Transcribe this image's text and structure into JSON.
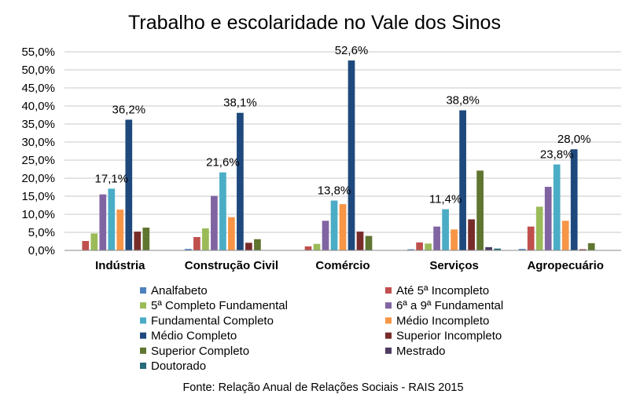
{
  "chart_data": {
    "type": "bar",
    "title": "Trabalho e escolaridade no Vale dos Sinos",
    "source": "Fonte: Relação Anual de Relações Sociais - RAIS 2015",
    "categories": [
      "Indústria",
      "Construção Civil",
      "Comércio",
      "Serviços",
      "Agropecuário"
    ],
    "ylim": [
      0,
      55
    ],
    "yticks": [
      0,
      5,
      10,
      15,
      20,
      25,
      30,
      35,
      40,
      45,
      50,
      55
    ],
    "ytick_labels": [
      "0,0%",
      "5,0%",
      "10,0%",
      "15,0%",
      "20,0%",
      "25,0%",
      "30,0%",
      "35,0%",
      "40,0%",
      "45,0%",
      "50,0%",
      "55,0%"
    ],
    "grid": true,
    "legend_position": "bottom",
    "series": [
      {
        "name": "Analfabeto",
        "color": "#4f81bd",
        "values": [
          0.1,
          0.4,
          0.1,
          0.3,
          0.4
        ]
      },
      {
        "name": "Até 5ª Incompleto",
        "color": "#c0504d",
        "values": [
          2.6,
          3.7,
          1.1,
          2.2,
          6.6
        ]
      },
      {
        "name": "5ª Completo Fundamental",
        "color": "#9bbb59",
        "values": [
          4.7,
          6.1,
          1.8,
          1.9,
          12.1
        ]
      },
      {
        "name": "6ª a 9ª Fundamental",
        "color": "#8064a2",
        "values": [
          15.5,
          15.1,
          8.2,
          6.6,
          17.6
        ]
      },
      {
        "name": "Fundamental Completo",
        "color": "#4bacc6",
        "values": [
          17.1,
          21.6,
          13.8,
          11.4,
          23.8
        ]
      },
      {
        "name": "Médio Incompleto",
        "color": "#f79646",
        "values": [
          11.3,
          9.2,
          12.8,
          5.8,
          8.2
        ]
      },
      {
        "name": "Médio Completo",
        "color": "#1f497d",
        "values": [
          36.2,
          38.1,
          52.6,
          38.8,
          28.0
        ]
      },
      {
        "name": "Superior Incompleto",
        "color": "#772c2a",
        "values": [
          5.2,
          2.1,
          5.2,
          8.6,
          0.3
        ]
      },
      {
        "name": "Superior Completo",
        "color": "#5f7530",
        "values": [
          6.3,
          3.1,
          4.0,
          22.1,
          2.0
        ]
      },
      {
        "name": "Mestrado",
        "color": "#4d3b62",
        "values": [
          0.1,
          0.1,
          0.1,
          0.9,
          0.1
        ]
      },
      {
        "name": "Doutorado",
        "color": "#276a7c",
        "values": [
          0.0,
          0.0,
          0.0,
          0.5,
          0.0
        ]
      }
    ],
    "data_labels": [
      {
        "series": "Fundamental Completo",
        "category": "Indústria",
        "text": "17,1%"
      },
      {
        "series": "Médio Completo",
        "category": "Indústria",
        "text": "36,2%"
      },
      {
        "series": "Fundamental Completo",
        "category": "Construção Civil",
        "text": "21,6%"
      },
      {
        "series": "Médio Completo",
        "category": "Construção Civil",
        "text": "38,1%"
      },
      {
        "series": "Fundamental Completo",
        "category": "Comércio",
        "text": "13,8%"
      },
      {
        "series": "Médio Completo",
        "category": "Comércio",
        "text": "52,6%"
      },
      {
        "series": "Fundamental Completo",
        "category": "Serviços",
        "text": "11,4%"
      },
      {
        "series": "Médio Completo",
        "category": "Serviços",
        "text": "38,8%"
      },
      {
        "series": "Fundamental Completo",
        "category": "Agropecuário",
        "text": "23,8%"
      },
      {
        "series": "Médio Completo",
        "category": "Agropecuário",
        "text": "28,0%"
      }
    ]
  }
}
